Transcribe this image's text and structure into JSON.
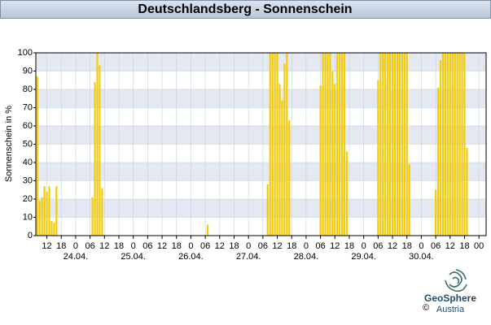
{
  "chart_data": {
    "type": "bar",
    "title": "Deutschlandsberg - Sonnenschein",
    "y_label": "Sonnenschein in %",
    "color": "#f2cc0c",
    "grid": true,
    "x": [
      8,
      9,
      10,
      11,
      12,
      13,
      14,
      15,
      16,
      31,
      32,
      33,
      34,
      35,
      79,
      104,
      105,
      106,
      107,
      108,
      109,
      110,
      111,
      112,
      113,
      126,
      127,
      128,
      129,
      130,
      131,
      132,
      133,
      134,
      135,
      136,
      137,
      150,
      151,
      152,
      153,
      154,
      155,
      156,
      157,
      158,
      159,
      160,
      161,
      162,
      163,
      174,
      175,
      176,
      177,
      178,
      179,
      180,
      181,
      182,
      183,
      184,
      185,
      186,
      187
    ],
    "values": [
      87,
      19,
      21,
      27,
      24,
      27,
      8,
      7,
      27,
      21,
      84,
      100,
      93,
      26,
      6,
      28,
      100,
      100,
      100,
      100,
      83,
      74,
      94,
      100,
      63,
      82,
      100,
      100,
      100,
      100,
      90,
      83,
      100,
      100,
      100,
      100,
      46,
      85,
      100,
      100,
      100,
      100,
      100,
      100,
      100,
      100,
      100,
      100,
      100,
      100,
      39,
      25,
      81,
      96,
      100,
      100,
      100,
      100,
      100,
      100,
      100,
      100,
      100,
      100,
      48
    ],
    "xlim": [
      7.4,
      195
    ],
    "ylim": [
      0,
      100
    ],
    "yticks": [
      0,
      10,
      20,
      30,
      40,
      50,
      60,
      70,
      80,
      90,
      100
    ],
    "xticks": [
      {
        "value": 12,
        "label": "12"
      },
      {
        "value": 18,
        "label": "18"
      },
      {
        "value": 24,
        "label": "0"
      },
      {
        "value": 30,
        "label": "06"
      },
      {
        "value": 36,
        "label": "12"
      },
      {
        "value": 42,
        "label": "18"
      },
      {
        "value": 48,
        "label": "0"
      },
      {
        "value": 54,
        "label": "06"
      },
      {
        "value": 60,
        "label": "12"
      },
      {
        "value": 66,
        "label": "18"
      },
      {
        "value": 72,
        "label": "0"
      },
      {
        "value": 78,
        "label": "06"
      },
      {
        "value": 84,
        "label": "12"
      },
      {
        "value": 90,
        "label": "18"
      },
      {
        "value": 96,
        "label": "0"
      },
      {
        "value": 102,
        "label": "06"
      },
      {
        "value": 108,
        "label": "12"
      },
      {
        "value": 114,
        "label": "18"
      },
      {
        "value": 120,
        "label": "0"
      },
      {
        "value": 126,
        "label": "06"
      },
      {
        "value": 132,
        "label": "12"
      },
      {
        "value": 138,
        "label": "18"
      },
      {
        "value": 144,
        "label": "0"
      },
      {
        "value": 150,
        "label": "06"
      },
      {
        "value": 156,
        "label": "12"
      },
      {
        "value": 162,
        "label": "18"
      },
      {
        "value": 168,
        "label": "0"
      },
      {
        "value": 174,
        "label": "06"
      },
      {
        "value": 180,
        "label": "12"
      },
      {
        "value": 186,
        "label": "18"
      },
      {
        "value": 192,
        "label": "00"
      }
    ],
    "day_labels": [
      {
        "value": 24,
        "label": "24.04."
      },
      {
        "value": 48,
        "label": "25.04."
      },
      {
        "value": 72,
        "label": "26.04."
      },
      {
        "value": 96,
        "label": "27.04."
      },
      {
        "value": 120,
        "label": "28.04."
      },
      {
        "value": 144,
        "label": "29.04."
      },
      {
        "value": 168,
        "label": "30.04."
      }
    ]
  },
  "logo": {
    "name": "GeoSphere",
    "sub": "Austria",
    "copyright": "©"
  }
}
